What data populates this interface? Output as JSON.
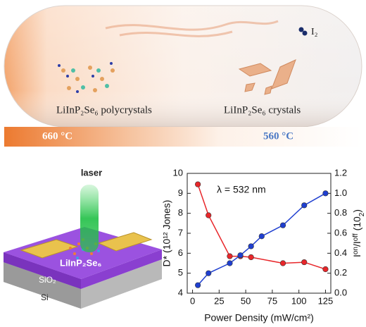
{
  "diagram": {
    "i2_label": "I₂",
    "polycrystals_label": "LiInP₂Se₆ polycrystals",
    "crystals_label": "LiInP₂Se₆ crystals",
    "hot_zone": "660 °C",
    "cold_zone": "560 °C",
    "laser_label": "laser",
    "material_label": "LiInP₂Se₆",
    "oxide_label": "SiO₂",
    "substrate_label": "Si"
  },
  "chart_data": {
    "type": "line",
    "annotation": "λ = 532 nm",
    "x_label": "Power Density (mW/cm²)",
    "y_label": "D* (10¹² Jones)",
    "y2_label": [
      "I",
      "on",
      "/I",
      "off",
      " (10",
      "2",
      ")"
    ],
    "xlim": [
      -5,
      130
    ],
    "xticks": [
      0,
      25,
      50,
      75,
      100,
      125
    ],
    "ylim": [
      4,
      10
    ],
    "yticks": [
      4,
      5,
      6,
      7,
      8,
      9,
      10
    ],
    "y2lim": [
      0,
      1.2
    ],
    "y2ticks": [
      {
        "value": 0,
        "label": "0.0"
      },
      0.2,
      0.4,
      0.6,
      0.8,
      {
        "value": 1,
        "label": "1.0"
      },
      1.2
    ],
    "series": [
      {
        "color": "#e8262a",
        "x": [
          5,
          15,
          35,
          45,
          55,
          85,
          105,
          125
        ],
        "values": [
          9.45,
          7.9,
          5.85,
          5.85,
          5.8,
          5.5,
          5.55,
          5.2
        ]
      },
      {
        "color": "#1f3fd0",
        "axis": "y2",
        "x": [
          5,
          15,
          35,
          45,
          55,
          65,
          85,
          105,
          125
        ],
        "values": [
          0.08,
          0.2,
          0.3,
          0.38,
          0.47,
          0.57,
          0.68,
          0.88,
          1.0
        ]
      }
    ]
  }
}
